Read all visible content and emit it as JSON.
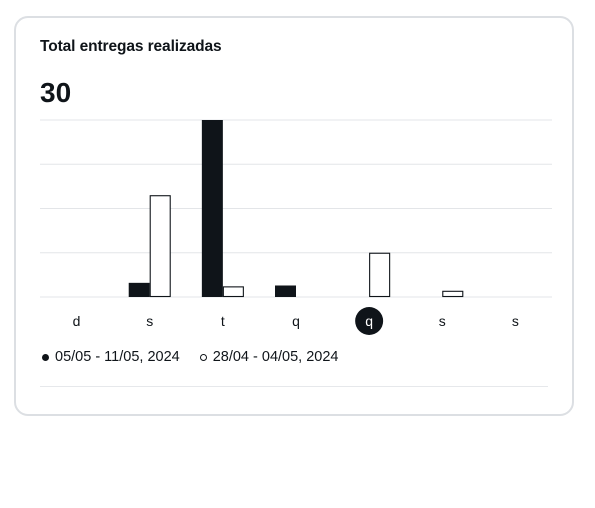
{
  "card": {
    "title": "Total entregas realizadas",
    "total": "30"
  },
  "colors": {
    "current": "#0f1419",
    "previous_fill": "#ffffff",
    "previous_stroke": "#0f1419",
    "grid": "#e3e5e8",
    "highlight_bg": "#0f1419",
    "highlight_text": "#ffffff"
  },
  "chart_data": {
    "type": "bar",
    "categories": [
      "d",
      "s",
      "t",
      "q",
      "q",
      "s",
      "s"
    ],
    "highlighted_category_index": 4,
    "ylim": [
      0,
      20
    ],
    "grid": true,
    "legend_position": "bottom-left",
    "series": [
      {
        "name": "05/05 - 11/05, 2024",
        "style": "filled",
        "values": [
          0,
          1.6,
          20,
          1.3,
          0,
          0,
          0
        ]
      },
      {
        "name": "28/04 - 04/05, 2024",
        "style": "outline",
        "values": [
          0,
          11.5,
          1.2,
          0,
          5,
          0.7,
          0
        ]
      }
    ]
  }
}
